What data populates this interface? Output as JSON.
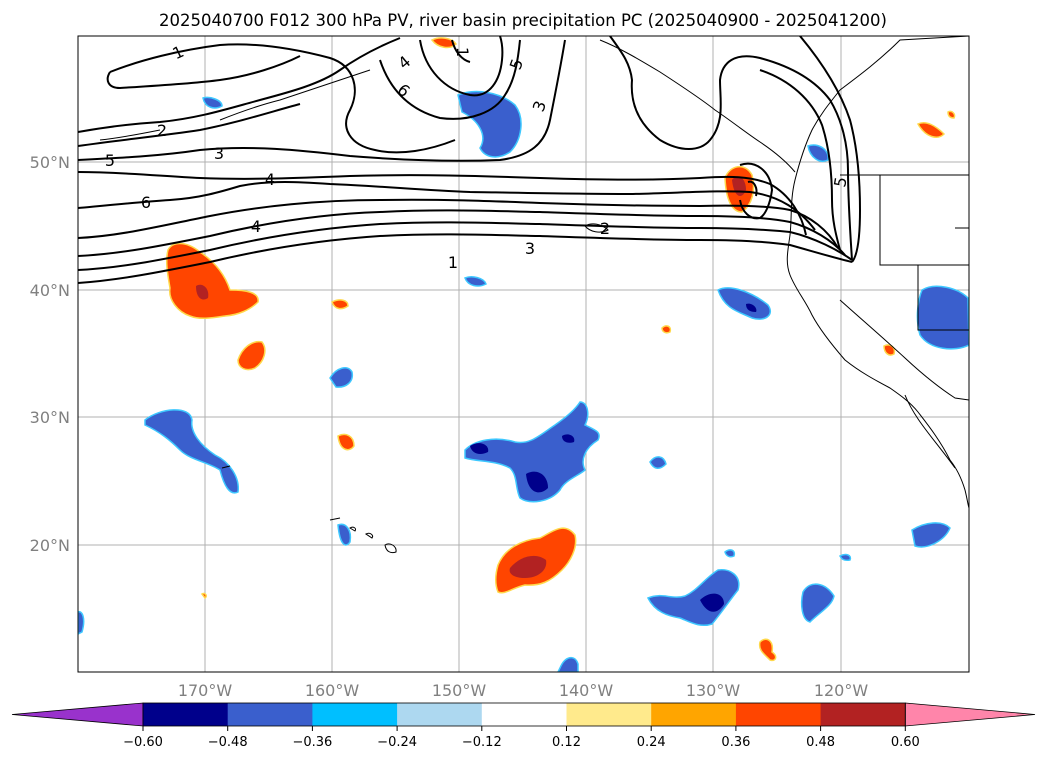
{
  "title": "2025040700 F012 300 hPa PV, river basin precipitation PC (2025040900 - 2025041200)",
  "map": {
    "lat_ticks": [
      "50°N",
      "40°N",
      "30°N",
      "20°N"
    ],
    "lon_ticks": [
      "170°W",
      "160°W",
      "150°W",
      "140°W",
      "130°W",
      "120°W"
    ]
  },
  "pv_contour_labels": [
    "1",
    "2",
    "3",
    "4",
    "5",
    "6",
    "1",
    "2",
    "3",
    "4",
    "5",
    "6",
    "4",
    "1",
    "3",
    "5"
  ],
  "colorbar": {
    "labels": [
      "−0.60",
      "−0.48",
      "−0.36",
      "−0.24",
      "−0.12",
      "0.12",
      "0.24",
      "0.36",
      "0.48",
      "0.60"
    ],
    "colors": [
      "#9932cc",
      "#00008b",
      "#3a5fcd",
      "#00bfff",
      "#add8f0",
      "#ffffff",
      "#ffea8c",
      "#ffa500",
      "#ff4500",
      "#b22222",
      "#ff85aa"
    ]
  }
}
